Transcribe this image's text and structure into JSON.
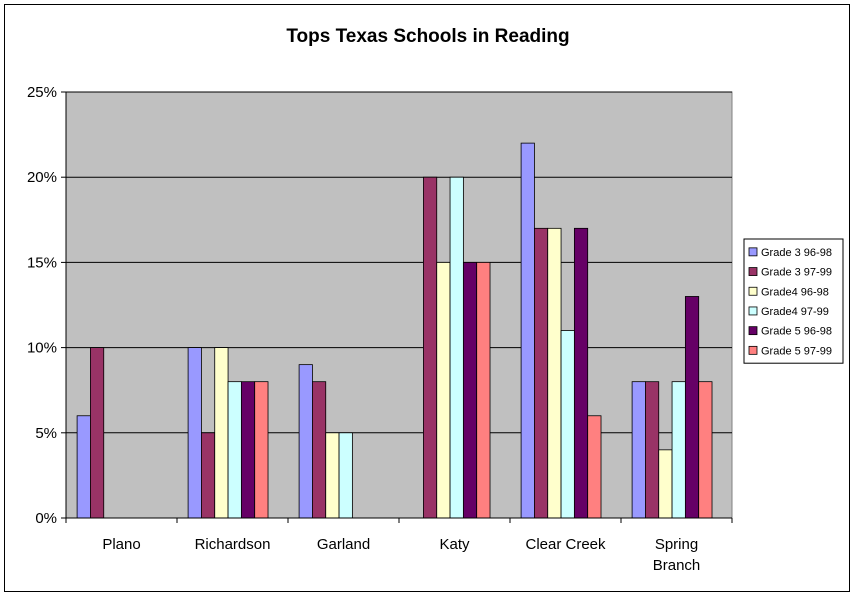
{
  "chart_data": {
    "type": "bar",
    "title": "Tops Texas Schools in Reading",
    "xlabel": "",
    "ylabel": "",
    "ylim": [
      0,
      25
    ],
    "y_ticks": [
      "0%",
      "5%",
      "10%",
      "15%",
      "20%",
      "25%"
    ],
    "grid": true,
    "legend_position": "right",
    "categories": [
      [
        "Plano"
      ],
      [
        "Richardson"
      ],
      [
        "Garland"
      ],
      [
        "Katy"
      ],
      [
        "Clear Creek"
      ],
      [
        "Spring",
        "Branch"
      ]
    ],
    "series": [
      {
        "name": "Grade 3 96-98",
        "color": "#9999ff",
        "values": [
          6,
          10,
          9,
          null,
          22,
          8
        ]
      },
      {
        "name": "Grade 3 97-99",
        "color": "#993366",
        "values": [
          10,
          5,
          8,
          20,
          17,
          8
        ]
      },
      {
        "name": "Grade4 96-98",
        "color": "#ffffcc",
        "values": [
          null,
          10,
          5,
          15,
          17,
          4
        ]
      },
      {
        "name": "Grade4 97-99",
        "color": "#ccffff",
        "values": [
          null,
          8,
          5,
          20,
          11,
          8
        ]
      },
      {
        "name": "Grade 5 96-98",
        "color": "#660066",
        "values": [
          null,
          8,
          null,
          15,
          17,
          13
        ]
      },
      {
        "name": "Grade 5 97-99",
        "color": "#ff8080",
        "values": [
          null,
          8,
          null,
          15,
          6,
          8
        ]
      }
    ],
    "colors": {
      "plot_background": "#c0c0c0"
    }
  }
}
